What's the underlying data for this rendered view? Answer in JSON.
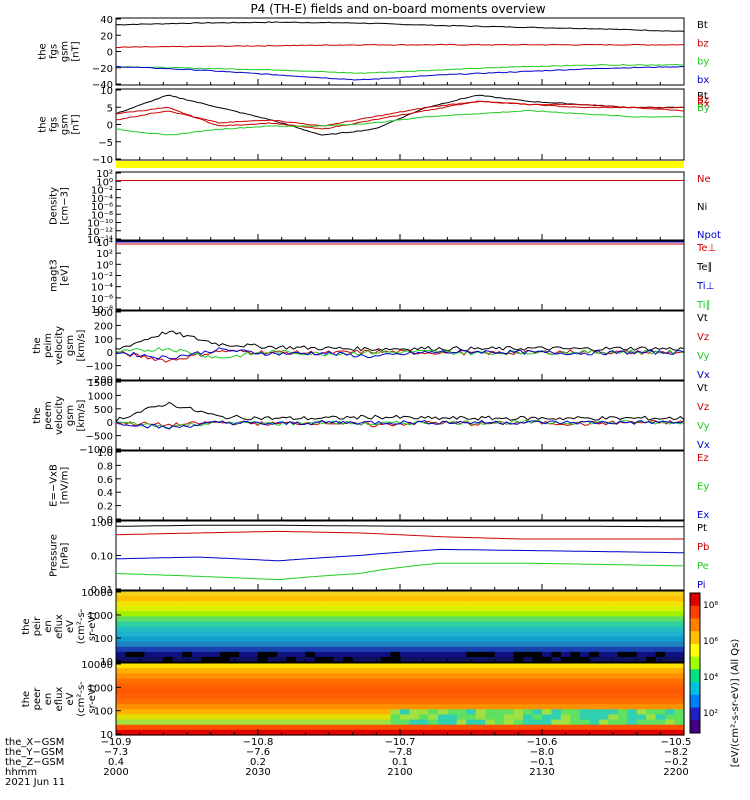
{
  "title": "P4 (TH-E) fields and on-board moments overview",
  "colors": {
    "black": "#000000",
    "red": "#cc0000",
    "green": "#22cc22",
    "blue": "#0000cc",
    "yellow": "#ffff00"
  },
  "chart_data": [
    {
      "id": "fgs_gsm",
      "type": "line",
      "ylabel": [
        "the",
        "fgs",
        "gsm",
        "[nT]"
      ],
      "yticks": [
        "40",
        "20",
        "0",
        "−20",
        "−40"
      ],
      "ylim": [
        -40,
        40
      ],
      "legend": [
        "Bt",
        "bz",
        "by",
        "bx"
      ],
      "series": [
        {
          "name": "Bt",
          "color": "black",
          "values": [
            32,
            34,
            35,
            34,
            31,
            29,
            27,
            24
          ]
        },
        {
          "name": "bz",
          "color": "red",
          "values": [
            5,
            6,
            7,
            8,
            8,
            8,
            8,
            8
          ]
        },
        {
          "name": "by",
          "color": "green",
          "values": [
            -18,
            -20,
            -22,
            -26,
            -22,
            -18,
            -16,
            -16
          ]
        },
        {
          "name": "bx",
          "color": "blue",
          "values": [
            -18,
            -22,
            -28,
            -34,
            -28,
            -24,
            -20,
            -18
          ]
        }
      ]
    },
    {
      "id": "fgs_dsl",
      "type": "line",
      "ylabel": [
        "the",
        "fgs",
        "gsm",
        "[nT]"
      ],
      "yticks": [
        "10",
        "5",
        "0",
        "−5",
        "−10"
      ],
      "ylim": [
        -13,
        10
      ],
      "legend": [
        "Bt",
        "Bz",
        "Bx",
        "By"
      ],
      "series": [
        {
          "name": "Bt",
          "color": "black",
          "values": [
            2,
            8,
            4,
            0,
            -5,
            -3,
            4,
            8,
            6,
            5,
            4,
            4
          ]
        },
        {
          "name": "Bz",
          "color": "red",
          "values": [
            2,
            4,
            -2,
            -1,
            -3,
            0,
            3,
            6,
            5,
            4,
            4,
            4
          ]
        },
        {
          "name": "Bx",
          "color": "red",
          "values": [
            0,
            3,
            -1,
            0,
            -2,
            1,
            4,
            6,
            5,
            5,
            4,
            3
          ]
        },
        {
          "name": "By",
          "color": "green",
          "values": [
            -3,
            -5,
            -3,
            -2,
            -2,
            -1,
            1,
            2,
            3,
            2,
            1,
            1
          ]
        }
      ]
    },
    {
      "id": "density",
      "type": "line",
      "scale": "log",
      "ylabel": [
        "Density",
        "[cm−3]"
      ],
      "yticks": [
        "10²",
        "10⁰",
        "10⁻²",
        "10⁻⁴",
        "10⁻⁶",
        "10⁻⁸",
        "10⁻¹⁰",
        "10⁻¹²",
        "10⁻¹⁴"
      ],
      "legend": [
        "Ne",
        "Ni",
        "Npot"
      ],
      "series": [
        {
          "name": "Ne",
          "color": "red",
          "values": [
            1,
            1,
            1,
            1,
            1,
            1
          ]
        }
      ]
    },
    {
      "id": "temperature",
      "type": "line",
      "scale": "log",
      "ylabel": [
        "magt3",
        "[eV]"
      ],
      "yticks": [
        "10⁴",
        "10²",
        "10⁰",
        "10⁻²",
        "10⁻⁴",
        "10⁻⁶",
        "10⁻⁸"
      ],
      "legend": [
        "Te⊥",
        "Te∥",
        "Ti⊥",
        "Ti∥"
      ],
      "series": [
        {
          "name": "Te⊥",
          "color": "red",
          "values": [
            3000,
            3000,
            3000,
            3000
          ]
        },
        {
          "name": "Ti⊥",
          "color": "blue",
          "values": [
            9000,
            9000,
            9000,
            9000
          ]
        }
      ]
    },
    {
      "id": "peim_velocity",
      "type": "line",
      "ylabel": [
        "the",
        "peim",
        "velocity",
        "gsm",
        "[km/s]"
      ],
      "yticks": [
        "300",
        "200",
        "100",
        "0",
        "−100",
        "−200"
      ],
      "ylim": [
        -200,
        300
      ],
      "legend": [
        "Vt",
        "Vz",
        "Vy",
        "Vx"
      ],
      "series": [
        {
          "name": "Vt",
          "color": "black",
          "values": [
            20,
            150,
            60,
            40,
            30,
            25,
            30,
            25,
            30,
            25,
            30,
            25
          ]
        },
        {
          "name": "Vz",
          "color": "red",
          "values": [
            0,
            -60,
            10,
            0,
            -5,
            5,
            0,
            -5,
            0,
            5,
            0,
            0
          ]
        },
        {
          "name": "Vy",
          "color": "green",
          "values": [
            0,
            30,
            -40,
            5,
            -10,
            0,
            5,
            -5,
            0,
            0,
            5,
            0
          ]
        },
        {
          "name": "Vx",
          "color": "blue",
          "values": [
            0,
            -40,
            20,
            -10,
            -5,
            -30,
            0,
            5,
            0,
            -5,
            0,
            0
          ]
        }
      ]
    },
    {
      "id": "peem_velocity",
      "type": "line",
      "ylabel": [
        "the",
        "peem",
        "velocity",
        "gsm",
        "[km/s]"
      ],
      "yticks": [
        "1500",
        "1000",
        "500",
        "0",
        "−500",
        "−1000"
      ],
      "ylim": [
        -1000,
        1500
      ],
      "legend": [
        "Vt",
        "Vz",
        "Vy",
        "Vx"
      ],
      "series": [
        {
          "name": "Vt",
          "color": "black",
          "values": [
            100,
            700,
            200,
            150,
            150,
            200,
            150,
            150,
            150,
            150,
            150,
            150
          ]
        },
        {
          "name": "Vz",
          "color": "red",
          "values": [
            0,
            -100,
            0,
            -50,
            0,
            -100,
            0,
            -50,
            0,
            -50,
            0,
            0
          ]
        },
        {
          "name": "Vy",
          "color": "green",
          "values": [
            0,
            -150,
            0,
            -50,
            0,
            -50,
            0,
            0,
            0,
            0,
            0,
            0
          ]
        },
        {
          "name": "Vx",
          "color": "blue",
          "values": [
            0,
            -200,
            0,
            -50,
            0,
            0,
            0,
            0,
            0,
            0,
            0,
            0
          ]
        }
      ]
    },
    {
      "id": "efield",
      "type": "line",
      "ylabel": [
        "E=−VxB",
        "[mV/m]"
      ],
      "yticks": [
        "1.0",
        "0.8",
        "0.6",
        "0.4",
        "0.2",
        "0.0"
      ],
      "ylim": [
        0,
        1
      ],
      "legend": [
        "Ez",
        "Ey",
        "Ex"
      ],
      "series": []
    },
    {
      "id": "pressure",
      "type": "line",
      "scale": "log",
      "ylabel": [
        "Pressure",
        "[nPa]"
      ],
      "yticks": [
        "1.00",
        "0.10",
        "0.01"
      ],
      "ylim": [
        0.01,
        1
      ],
      "legend": [
        "Pt",
        "Pb",
        "Pe",
        "Pi"
      ],
      "series": [
        {
          "name": "Pt",
          "color": "black",
          "values": [
            0.7,
            0.75,
            0.75,
            0.72,
            0.7,
            0.7,
            0.7,
            0.68
          ]
        },
        {
          "name": "Pb",
          "color": "red",
          "values": [
            0.4,
            0.45,
            0.5,
            0.45,
            0.35,
            0.3,
            0.3,
            0.3
          ]
        },
        {
          "name": "Pe",
          "color": "blue",
          "values": [
            0.08,
            0.09,
            0.07,
            0.1,
            0.15,
            0.14,
            0.13,
            0.12
          ]
        },
        {
          "name": "Pi",
          "color": "green",
          "values": [
            0.03,
            0.025,
            0.02,
            0.03,
            0.06,
            0.06,
            0.055,
            0.05
          ]
        }
      ]
    },
    {
      "id": "peir_spectrogram",
      "type": "heatmap",
      "ylabel": [
        "the",
        "peir",
        "en",
        "eflux",
        "eV",
        "(cm²-s-",
        "sr-eV)"
      ],
      "yticks": [
        "10000",
        "1000",
        "100",
        "10"
      ]
    },
    {
      "id": "peer_spectrogram",
      "type": "heatmap",
      "ylabel": [
        "the",
        "peer",
        "en",
        "eflux",
        "eV",
        "(cm²-s-",
        "sr-eV)"
      ],
      "yticks": [
        "10000",
        "1000",
        "100",
        "10"
      ]
    }
  ],
  "colorbar": {
    "label": "[eV/(cm²-s-sr-eV)] (All Qs)",
    "ticks": [
      "10⁸",
      "10⁶",
      "10⁴",
      "10²"
    ]
  },
  "xaxis": {
    "rows": [
      {
        "label": "the_X−GSM",
        "values": [
          "−10.9",
          "−10.8",
          "−10.7",
          "−10.6",
          "−10.5"
        ]
      },
      {
        "label": "the_Y−GSM",
        "values": [
          "−7.3",
          "−7.6",
          "−7.8",
          "−8.0",
          "−8.2"
        ]
      },
      {
        "label": "the_Z−GSM",
        "values": [
          "0.4",
          "0.2",
          "0.1",
          "−0.1",
          "−0.2"
        ]
      },
      {
        "label": "hhmm",
        "values": [
          "2000",
          "2030",
          "2100",
          "2130",
          "2200"
        ]
      }
    ],
    "date": "2021 Jun 11"
  }
}
